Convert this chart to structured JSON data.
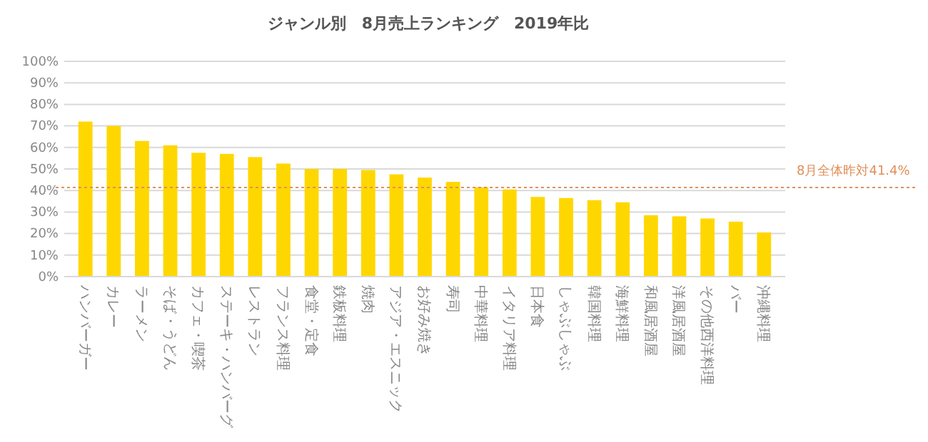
{
  "chart_data": {
    "type": "bar",
    "title": "ジャンル別　8月売上ランキング　2019年比",
    "categories": [
      "ハンバーガー",
      "カレー",
      "ラーメン",
      "そば・うどん",
      "カフェ・喫茶",
      "ステーキ・ハンバーグ",
      "レストラン",
      "フランス料理",
      "食堂・定食",
      "鉄板料理",
      "焼肉",
      "アジア・エスニック",
      "お好み焼き",
      "寿司",
      "中華料理",
      "イタリア料理",
      "日本食",
      "しゃぶしゃぶ",
      "韓国料理",
      "海鮮料理",
      "和風居酒屋",
      "洋風居酒屋",
      "その他西洋料理",
      "バー",
      "沖縄料理"
    ],
    "values": [
      72,
      70,
      63,
      61,
      57.5,
      57,
      55.5,
      52.5,
      50,
      50,
      49.5,
      47.5,
      46,
      44,
      41.5,
      40.5,
      37,
      36.5,
      35.5,
      34.5,
      28.5,
      28,
      27,
      25.5,
      20.5
    ],
    "color": "#ffd700",
    "ylim": [
      0,
      100
    ],
    "yticks": [
      {
        "value": 0,
        "label": "0%"
      },
      {
        "value": 10,
        "label": "10%"
      },
      {
        "value": 20,
        "label": "20%"
      },
      {
        "value": 30,
        "label": "30%"
      },
      {
        "value": 40,
        "label": "40%"
      },
      {
        "value": 50,
        "label": "50%"
      },
      {
        "value": 60,
        "label": "60%"
      },
      {
        "value": 70,
        "label": "70%"
      },
      {
        "value": 80,
        "label": "80%"
      },
      {
        "value": 90,
        "label": "90%"
      },
      {
        "value": 100,
        "label": "100%"
      }
    ],
    "grid": "y",
    "ref_lines": [
      {
        "axis": "y",
        "value": 41.4,
        "label": "8月全体昨対41.4%",
        "color": "#e0905a",
        "line_style": "dotted"
      }
    ]
  }
}
